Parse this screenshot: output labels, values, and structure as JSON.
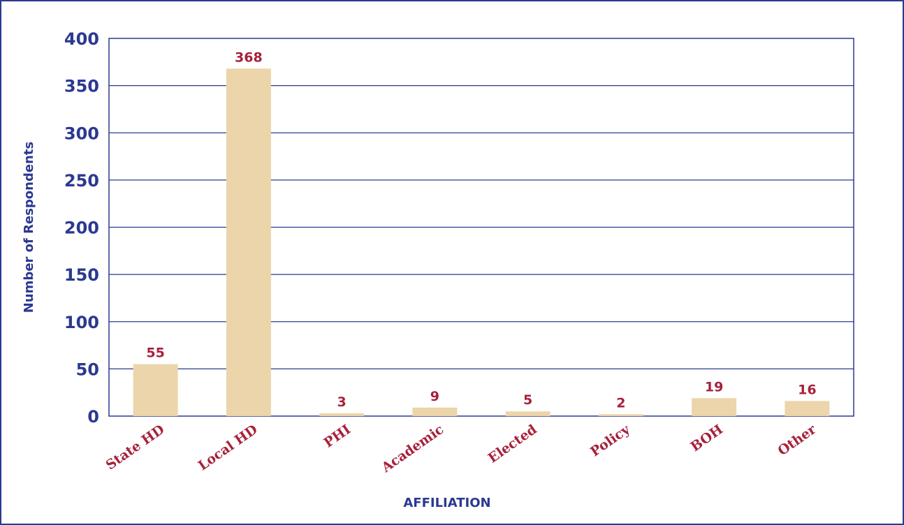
{
  "chart_data": {
    "type": "bar",
    "title": "",
    "xlabel": "AFFILIATION",
    "ylabel": "Number of Respondents",
    "categories": [
      "State HD",
      "Local HD",
      "PHI",
      "Academic",
      "Elected",
      "Policy",
      "BOH",
      "Other"
    ],
    "values": [
      55,
      368,
      3,
      9,
      5,
      2,
      19,
      16
    ],
    "ylim": [
      0,
      400
    ],
    "yticks": [
      "0",
      "50",
      "100",
      "150",
      "200",
      "250",
      "300",
      "350",
      "400"
    ],
    "grid": true,
    "legend": "none",
    "colors": {
      "bar": "#ecd5ab",
      "axis": "#2b3990",
      "data_label": "#a6213a",
      "category_label": "#a6213a",
      "frame": "#2b3990"
    }
  }
}
